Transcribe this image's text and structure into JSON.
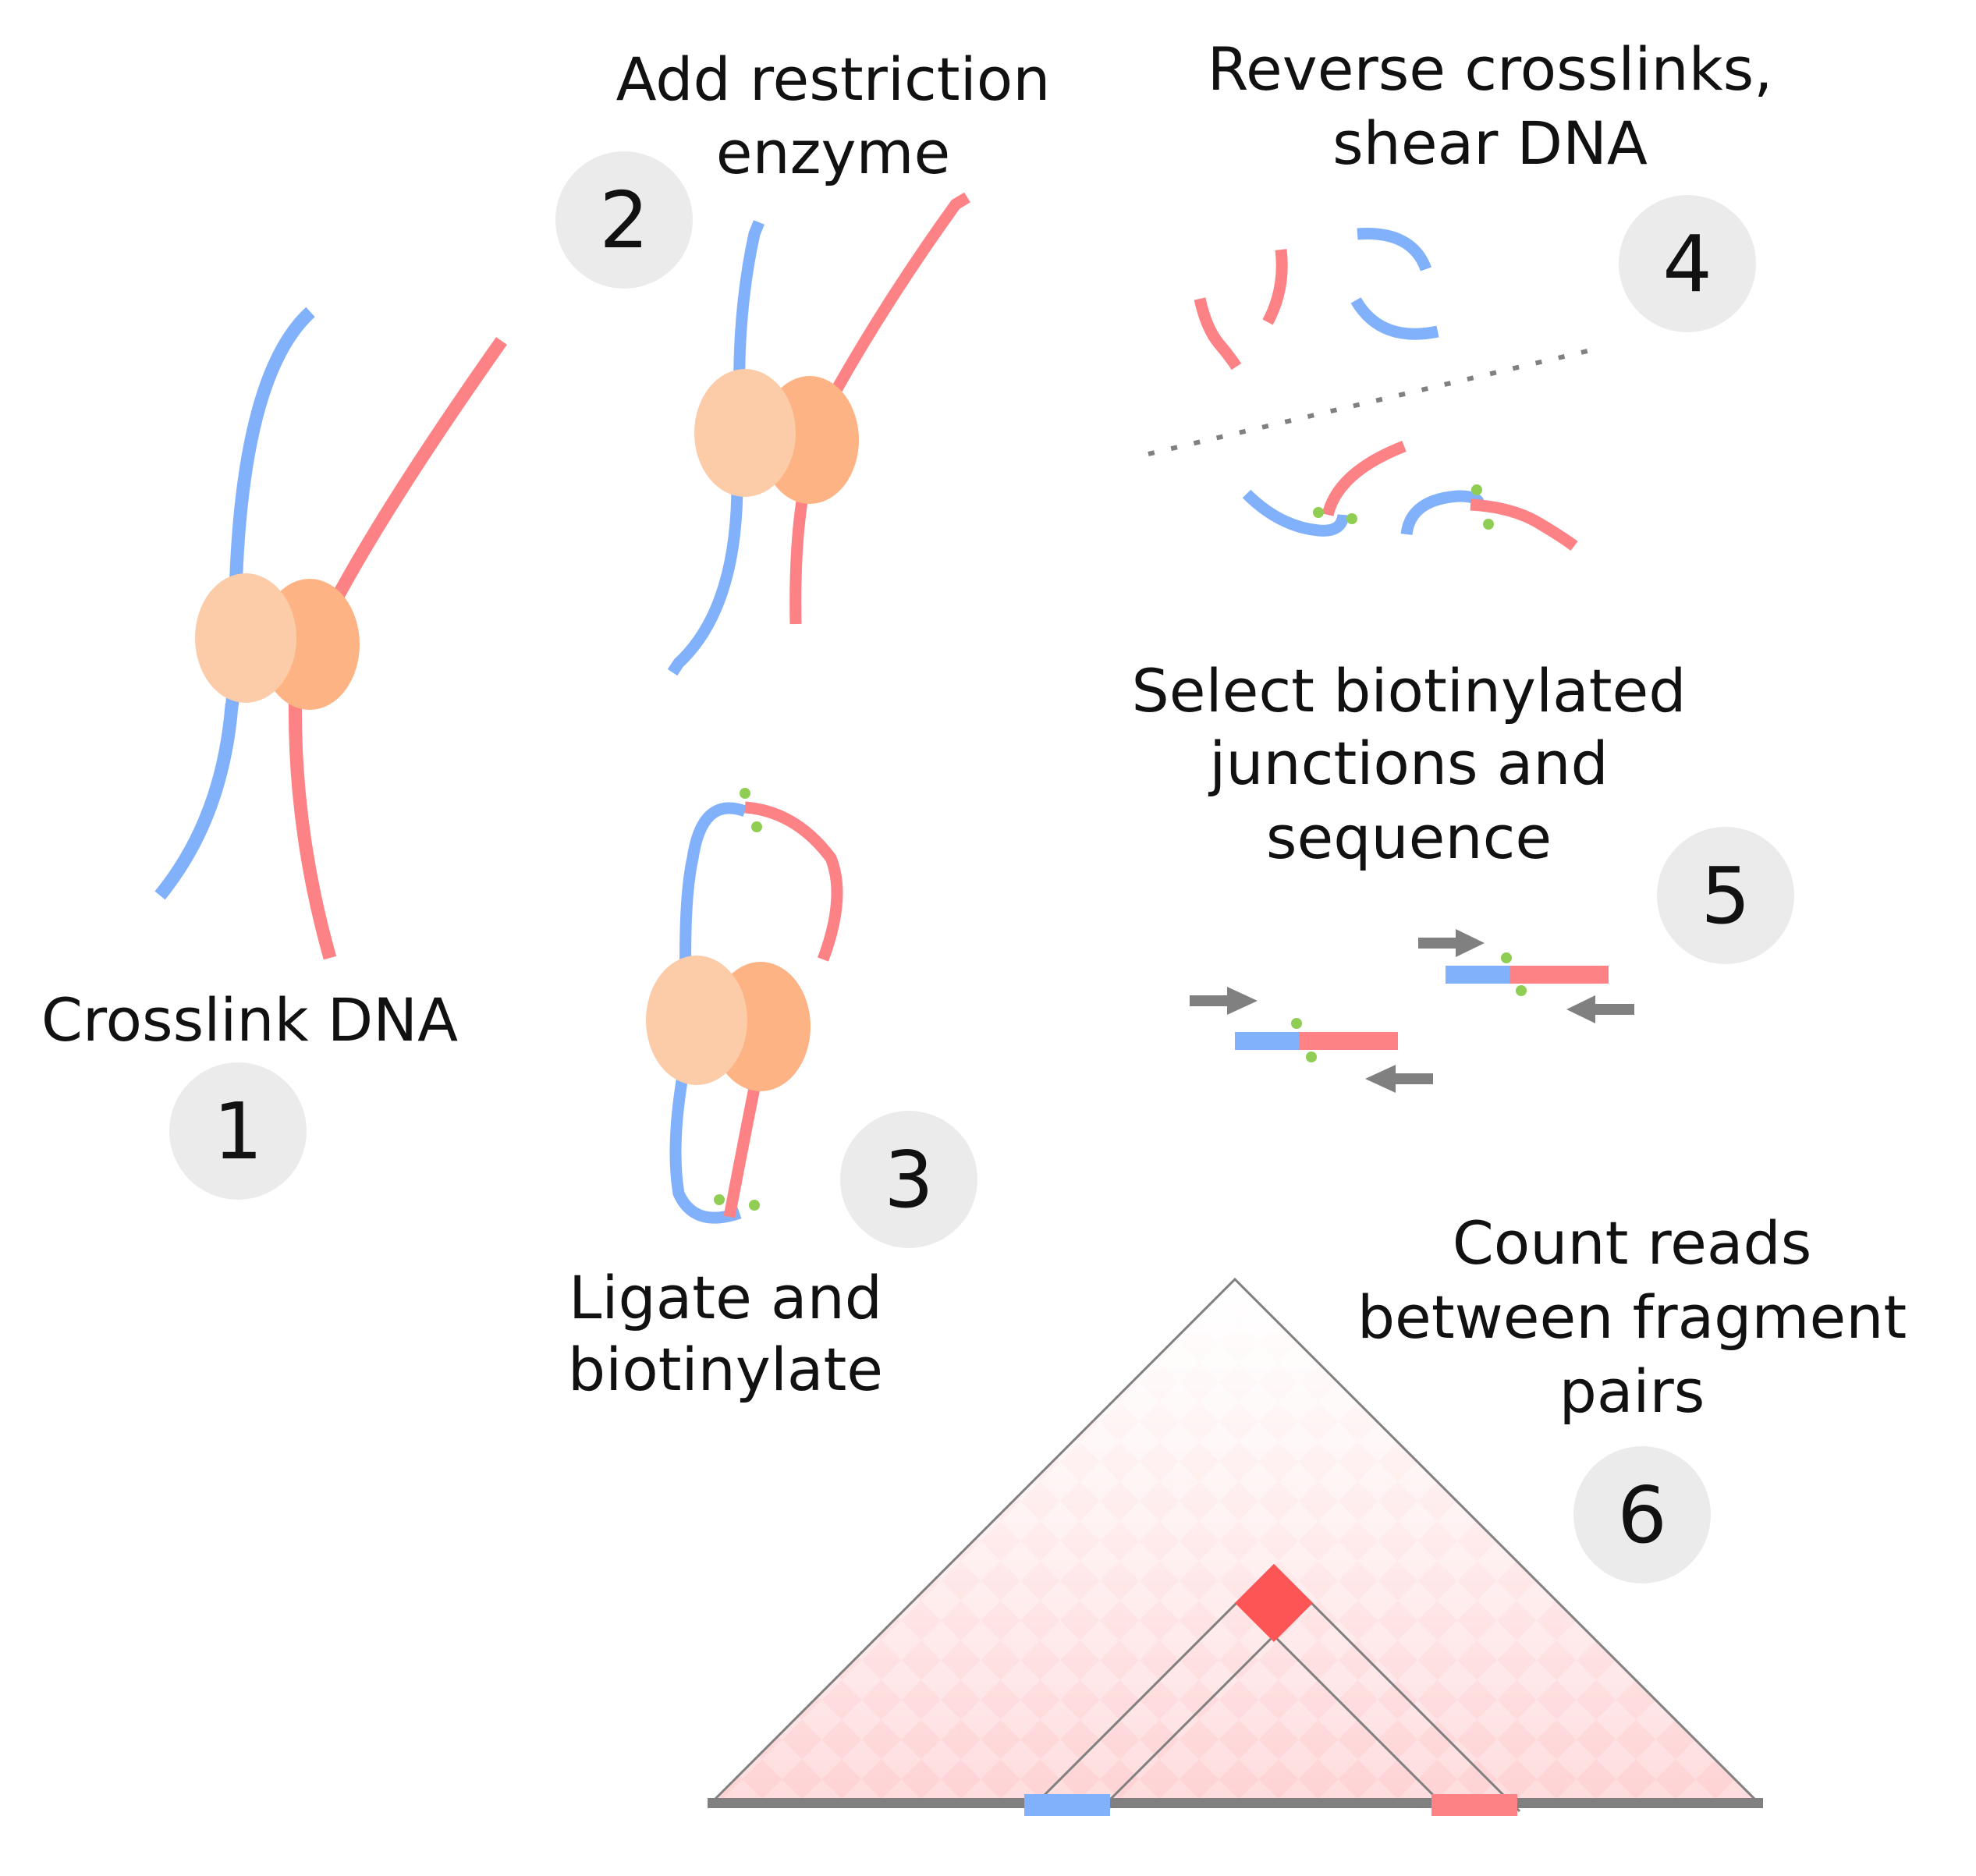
{
  "steps": [
    {
      "number": "1",
      "label_lines": [
        "Crosslink DNA"
      ]
    },
    {
      "number": "2",
      "label_lines": [
        "Add restriction",
        "enzyme"
      ]
    },
    {
      "number": "3",
      "label_lines": [
        "Ligate and",
        "biotinylate"
      ]
    },
    {
      "number": "4",
      "label_lines": [
        "Reverse crosslinks,",
        "shear DNA"
      ]
    },
    {
      "number": "5",
      "label_lines": [
        "Select biotinylated",
        "junctions and",
        "sequence"
      ]
    },
    {
      "number": "6",
      "label_lines": [
        "Count reads",
        "between fragment",
        "pairs"
      ]
    }
  ],
  "colors": {
    "dna_blue": "#82b1fb",
    "dna_red": "#fd8285",
    "protein_light": "#fccba8",
    "protein_dark": "#fdb384",
    "biotin": "#8fce52",
    "primer_arrow": "#808080",
    "badge": "#ebebeb",
    "heatmap_peak": "#fd5556"
  },
  "icons": {
    "protein": "protein-complex-icon",
    "biotin": "biotin-dot-icon",
    "primer": "primer-arrow-icon"
  }
}
